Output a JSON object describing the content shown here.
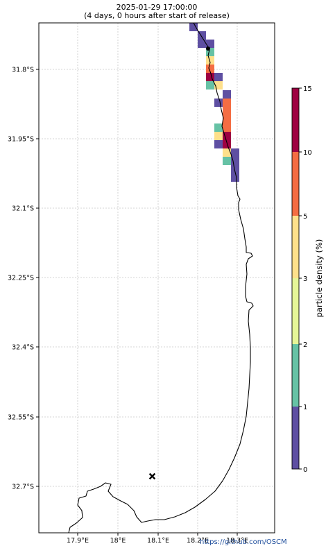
{
  "title": {
    "line1": "2025-01-29 17:00:00",
    "line2": "(4 days, 0 hours after start of release)"
  },
  "map": {
    "lon_ticks": [
      "17.9°E",
      "18°E",
      "18.1°E",
      "18.2°E",
      "18.3°E"
    ],
    "lat_ticks": [
      "31.8°S",
      "31.95°S",
      "32.1°S",
      "32.25°S",
      "32.4°S",
      "32.55°S",
      "32.7°S"
    ],
    "release_marker_icon": "x-marker",
    "start_point_icon": "dot-marker"
  },
  "colorbar": {
    "label": "particle density (%)",
    "ticks": [
      "0",
      "1",
      "2",
      "3",
      "5",
      "10",
      "15"
    ],
    "colors": [
      "#5e4fa2",
      "#66c2a5",
      "#e6f598",
      "#fee08b",
      "#f46d43",
      "#9e0142"
    ]
  },
  "footer": {
    "text": "https://github.com/OSCM"
  }
}
